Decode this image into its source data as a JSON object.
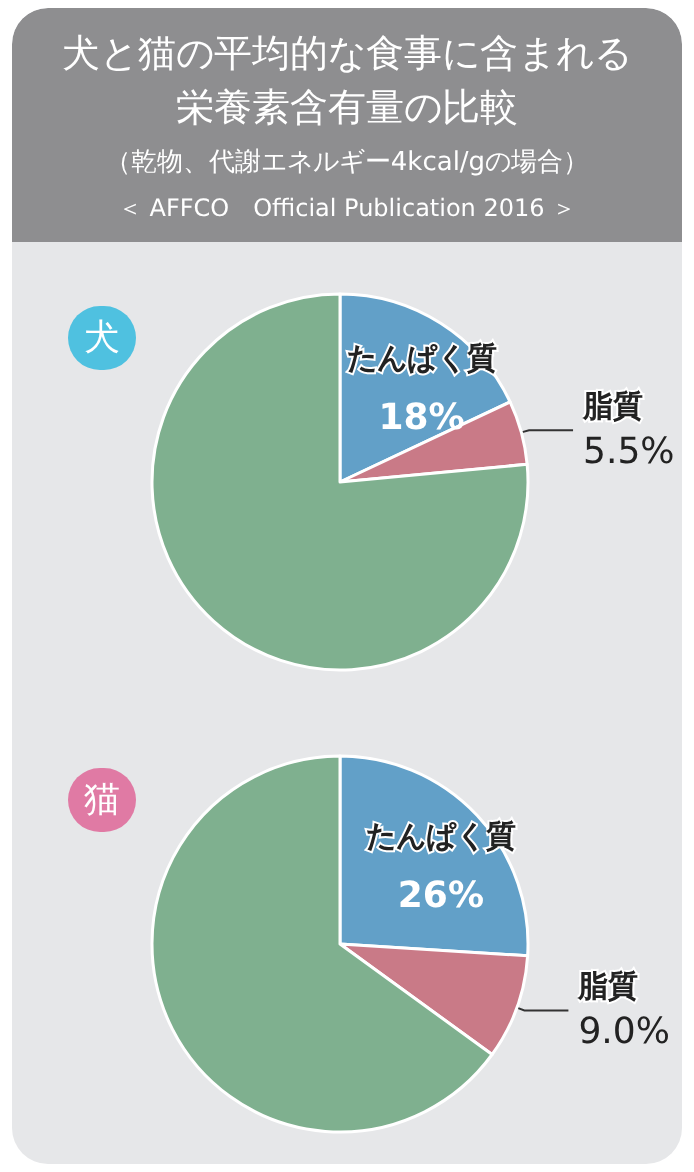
{
  "chart_data": [
    {
      "type": "other",
      "title": "犬と猫の平均的な食事に含まれる栄養素含有量の比較",
      "subtitle": "（乾物、代謝エネルギー4kcal/gの場合）",
      "annotations": [
        "＜ AFFCO　Official Publication 2016 ＞"
      ]
    },
    {
      "type": "pie",
      "title": "犬",
      "categories": [
        "たんぱく質",
        "脂質",
        null
      ],
      "values": [
        18,
        5.5,
        76.5
      ],
      "value_labels": [
        "18%",
        "5.5%",
        null
      ],
      "colors": [
        "#62a0c8",
        "#c97a87",
        "#7fb08f"
      ]
    },
    {
      "type": "pie",
      "title": "猫",
      "categories": [
        "たんぱく質",
        "脂質",
        null
      ],
      "values": [
        26,
        9.0,
        65
      ],
      "value_labels": [
        "26%",
        "9.0%",
        null
      ],
      "colors": [
        "#62a0c8",
        "#c97a87",
        "#7fb08f"
      ]
    }
  ]
}
